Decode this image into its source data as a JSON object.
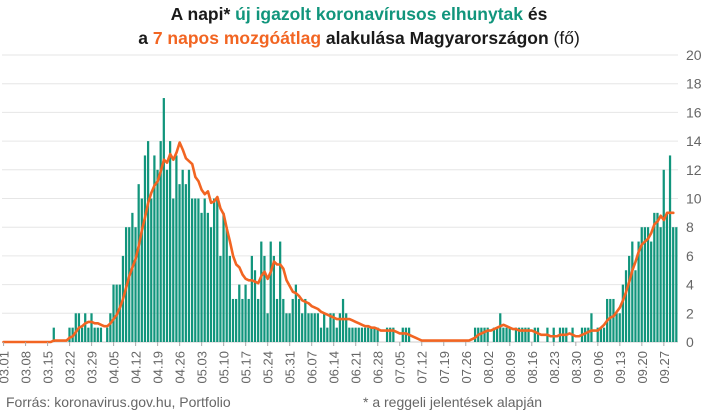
{
  "title": {
    "l1_a": "A napi* ",
    "l1_b": "új igazolt koronavírusos elhunytak",
    "l1_c": " és",
    "l2_a": "a ",
    "l2_b": "7 napos mozgóátlag",
    "l2_c": " alakulása Magyarországon",
    "l2_d": " (fő)"
  },
  "footer": {
    "source": "Forrás: koronavirus.gov.hu, Portfolio",
    "note": "* a reggeli jelentések alapján"
  },
  "colors": {
    "bars": "#11957c",
    "line": "#f26522",
    "grid": "#e6e6e6",
    "text": "#666666"
  },
  "chart_data": {
    "type": "bar",
    "ylim": [
      0,
      20
    ],
    "yticks": [
      0,
      2,
      4,
      6,
      8,
      10,
      12,
      14,
      16,
      18,
      20
    ],
    "xticks": [
      "03.01",
      "03.08",
      "03.15",
      "03.22",
      "03.29",
      "04.05",
      "04.12",
      "04.19",
      "04.26",
      "05.03",
      "05.10",
      "05.17",
      "05.24",
      "05.31",
      "06.07",
      "06.14",
      "06.21",
      "06.28",
      "07.05",
      "07.12",
      "07.19",
      "07.26",
      "08.02",
      "08.09",
      "08.16",
      "08.23",
      "08.30",
      "09.06",
      "09.13",
      "09.20",
      "09.27"
    ],
    "start_date": "03.01",
    "series": [
      {
        "type": "bar",
        "values": [
          0,
          0,
          0,
          0,
          0,
          0,
          0,
          0,
          0,
          0,
          0,
          0,
          0,
          0,
          0,
          0,
          1,
          0,
          0,
          0,
          0,
          1,
          1,
          2,
          2,
          1,
          2,
          1,
          2,
          1,
          1,
          1,
          0,
          1,
          2,
          4,
          4,
          4,
          6,
          8,
          8,
          9,
          8,
          11,
          10,
          13,
          14,
          10,
          13,
          12,
          14,
          17,
          12,
          14,
          10,
          13,
          11,
          12,
          11,
          12,
          10,
          10,
          10,
          9,
          10,
          9,
          8,
          10,
          10,
          6,
          9,
          8,
          6,
          3,
          3,
          4,
          3,
          4,
          3,
          6,
          5,
          3,
          7,
          6,
          2,
          7,
          6,
          3,
          7,
          3,
          2,
          2,
          3,
          4,
          3,
          2,
          3,
          2,
          2,
          2,
          2,
          1,
          2,
          1,
          2,
          2,
          1,
          2,
          3,
          2,
          1,
          1,
          1,
          1,
          1,
          1,
          1,
          1,
          1,
          1,
          0,
          0,
          1,
          1,
          1,
          0,
          0,
          1,
          1,
          1,
          0,
          0,
          0,
          0,
          0,
          0,
          0,
          0,
          0,
          0,
          0,
          0,
          0,
          0,
          0,
          0,
          0,
          0,
          0,
          0,
          1,
          1,
          1,
          1,
          1,
          0,
          1,
          1,
          2,
          1,
          1,
          1,
          0,
          1,
          1,
          1,
          1,
          1,
          0,
          1,
          1,
          0,
          0,
          1,
          0,
          1,
          0,
          1,
          1,
          1,
          0,
          1,
          0,
          0,
          1,
          1,
          1,
          2,
          0,
          1,
          1,
          1,
          3,
          3,
          3,
          2,
          2,
          4,
          5,
          6,
          7,
          5,
          7,
          8,
          8,
          8,
          7,
          9,
          9,
          8,
          12,
          9,
          13,
          8,
          8
        ]
      },
      {
        "type": "line",
        "values": [
          0,
          0,
          0,
          0,
          0,
          0,
          0,
          0,
          0,
          0,
          0,
          0,
          0,
          0,
          0,
          0,
          0.1,
          0.1,
          0.1,
          0.1,
          0.1,
          0.3,
          0.4,
          0.7,
          1,
          1.1,
          1.3,
          1.4,
          1.4,
          1.3,
          1.3,
          1.2,
          1.1,
          1.1,
          1.3,
          1.6,
          1.9,
          2.4,
          3,
          3.8,
          4.6,
          5.2,
          5.8,
          6.7,
          7.8,
          8.7,
          9.7,
          10.4,
          10.9,
          11.2,
          11.9,
          12.7,
          12.5,
          13.1,
          12.7,
          13.2,
          13.9,
          13.4,
          12.8,
          12.6,
          12.4,
          11.5,
          11.2,
          10.6,
          10.3,
          10.5,
          9.7,
          9.8,
          10.1,
          9.3,
          8.9,
          7.9,
          7,
          6,
          5.4,
          5.2,
          4.7,
          4.4,
          4.3,
          4.3,
          4.2,
          4.1,
          4.6,
          4.9,
          4.4,
          4.9,
          5.6,
          5.4,
          5.4,
          5.1,
          4.3,
          3.9,
          3.5,
          3.4,
          3.2,
          2.9,
          2.8,
          2.7,
          2.5,
          2.4,
          2.3,
          2.1,
          2,
          1.9,
          1.8,
          1.7,
          1.6,
          1.6,
          1.6,
          1.6,
          1.6,
          1.5,
          1.4,
          1.3,
          1.2,
          1.1,
          1.1,
          1,
          1,
          0.9,
          0.8,
          0.8,
          0.8,
          0.8,
          0.8,
          0.7,
          0.6,
          0.6,
          0.6,
          0.5,
          0.4,
          0.3,
          0.2,
          0.1,
          0.1,
          0.1,
          0.1,
          0.1,
          0.1,
          0.1,
          0.1,
          0.1,
          0.1,
          0.1,
          0.1,
          0.1,
          0.1,
          0.1,
          0.1,
          0.2,
          0.3,
          0.5,
          0.6,
          0.7,
          0.8,
          0.8,
          0.9,
          1,
          1.1,
          1.2,
          1.1,
          1,
          0.9,
          0.9,
          0.8,
          0.8,
          0.8,
          0.8,
          0.8,
          0.7,
          0.6,
          0.5,
          0.5,
          0.5,
          0.4,
          0.4,
          0.4,
          0.5,
          0.5,
          0.5,
          0.6,
          0.5,
          0.4,
          0.4,
          0.5,
          0.6,
          0.7,
          0.8,
          0.8,
          0.8,
          1,
          1.2,
          1.5,
          1.7,
          1.8,
          2.1,
          2.4,
          2.9,
          3.5,
          4.2,
          5,
          5.6,
          6.3,
          6.8,
          7,
          7.2,
          7.6,
          8.2,
          8.4,
          8.8,
          8.5,
          9,
          9,
          9
        ]
      }
    ]
  }
}
